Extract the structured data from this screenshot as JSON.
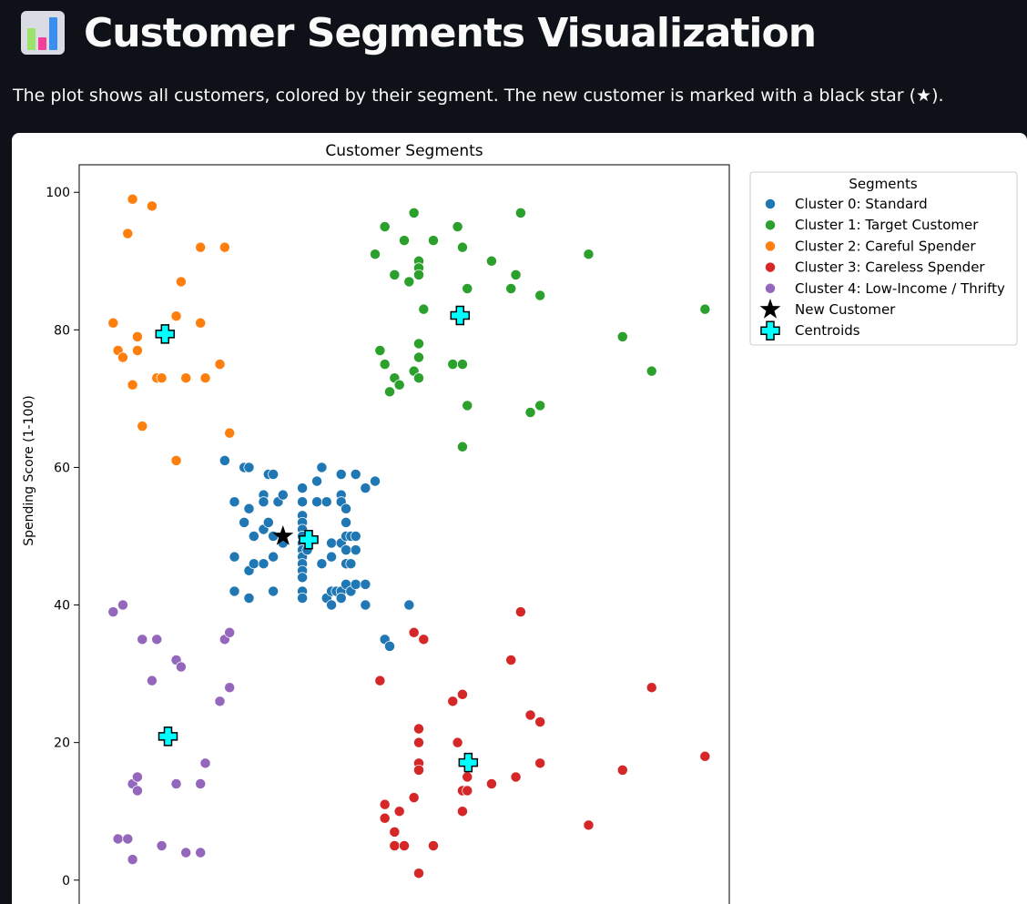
{
  "page": {
    "title": "Customer Segments Visualization",
    "description": "The plot shows all customers, colored by their segment. The new customer is marked with a black star (★)."
  },
  "colors": {
    "background": "#0e1117",
    "cluster_0": "#1f77b4",
    "cluster_1": "#2ca02c",
    "cluster_2": "#ff7f0e",
    "cluster_3": "#d62728",
    "cluster_4": "#9467bd",
    "new_customer": "#000000",
    "centroid": "#00ffff"
  },
  "chart_data": {
    "type": "scatter",
    "title": "Customer Segments",
    "xlabel": "",
    "ylabel": "Spending Score (1-100)",
    "xlim": [
      8,
      142
    ],
    "ylim": [
      -4,
      104
    ],
    "xticks": [
      20,
      40,
      60,
      80,
      100,
      120,
      140
    ],
    "yticks": [
      0,
      20,
      40,
      60,
      80,
      100
    ],
    "grid": false,
    "legend_title": "Segments",
    "legend_position": "outside-right-top",
    "series": [
      {
        "name": "Cluster 0: Standard",
        "color": "#1f77b4",
        "marker": "circle",
        "points": [
          [
            38,
            61
          ],
          [
            40,
            55
          ],
          [
            40,
            47
          ],
          [
            40,
            42
          ],
          [
            42,
            60
          ],
          [
            42,
            52
          ],
          [
            43,
            60
          ],
          [
            43,
            54
          ],
          [
            43,
            45
          ],
          [
            43,
            41
          ],
          [
            44,
            50
          ],
          [
            44,
            46
          ],
          [
            46,
            56
          ],
          [
            46,
            55
          ],
          [
            46,
            51
          ],
          [
            46,
            46
          ],
          [
            47,
            59
          ],
          [
            47,
            52
          ],
          [
            48,
            59
          ],
          [
            48,
            50
          ],
          [
            48,
            47
          ],
          [
            48,
            42
          ],
          [
            49,
            55
          ],
          [
            50,
            56
          ],
          [
            50,
            49
          ],
          [
            54,
            57
          ],
          [
            54,
            55
          ],
          [
            54,
            53
          ],
          [
            54,
            52
          ],
          [
            54,
            51
          ],
          [
            54,
            50
          ],
          [
            54,
            49
          ],
          [
            54,
            48
          ],
          [
            54,
            47
          ],
          [
            54,
            46
          ],
          [
            54,
            45
          ],
          [
            54,
            44
          ],
          [
            54,
            42
          ],
          [
            54,
            41
          ],
          [
            55,
            48
          ],
          [
            57,
            58
          ],
          [
            57,
            55
          ],
          [
            58,
            60
          ],
          [
            58,
            46
          ],
          [
            59,
            55
          ],
          [
            59,
            41
          ],
          [
            60,
            49
          ],
          [
            60,
            47
          ],
          [
            60,
            42
          ],
          [
            60,
            40
          ],
          [
            61,
            42
          ],
          [
            62,
            59
          ],
          [
            62,
            56
          ],
          [
            62,
            55
          ],
          [
            62,
            49
          ],
          [
            62,
            42
          ],
          [
            62,
            41
          ],
          [
            63,
            54
          ],
          [
            63,
            52
          ],
          [
            63,
            50
          ],
          [
            63,
            48
          ],
          [
            63,
            46
          ],
          [
            63,
            43
          ],
          [
            64,
            50
          ],
          [
            64,
            46
          ],
          [
            64,
            42
          ],
          [
            65,
            59
          ],
          [
            65,
            50
          ],
          [
            65,
            48
          ],
          [
            65,
            43
          ],
          [
            67,
            57
          ],
          [
            67,
            43
          ],
          [
            67,
            40
          ],
          [
            69,
            58
          ],
          [
            71,
            35
          ],
          [
            72,
            34
          ],
          [
            76,
            40
          ]
        ]
      },
      {
        "name": "Cluster 1: Target Customer",
        "color": "#2ca02c",
        "marker": "circle",
        "points": [
          [
            69,
            91
          ],
          [
            70,
            77
          ],
          [
            71,
            95
          ],
          [
            71,
            75
          ],
          [
            72,
            71
          ],
          [
            73,
            88
          ],
          [
            73,
            73
          ],
          [
            74,
            72
          ],
          [
            75,
            93
          ],
          [
            76,
            87
          ],
          [
            77,
            97
          ],
          [
            77,
            74
          ],
          [
            78,
            90
          ],
          [
            78,
            89
          ],
          [
            78,
            88
          ],
          [
            78,
            78
          ],
          [
            78,
            76
          ],
          [
            78,
            73
          ],
          [
            79,
            83
          ],
          [
            81,
            93
          ],
          [
            85,
            75
          ],
          [
            86,
            95
          ],
          [
            87,
            92
          ],
          [
            87,
            75
          ],
          [
            87,
            63
          ],
          [
            88,
            86
          ],
          [
            88,
            69
          ],
          [
            93,
            90
          ],
          [
            97,
            86
          ],
          [
            98,
            88
          ],
          [
            99,
            97
          ],
          [
            101,
            68
          ],
          [
            103,
            85
          ],
          [
            103,
            69
          ],
          [
            113,
            91
          ],
          [
            120,
            79
          ],
          [
            126,
            74
          ],
          [
            137,
            83
          ]
        ]
      },
      {
        "name": "Cluster 2: Careful Spender",
        "color": "#ff7f0e",
        "marker": "circle",
        "points": [
          [
            15,
            81
          ],
          [
            16,
            77
          ],
          [
            17,
            76
          ],
          [
            18,
            94
          ],
          [
            19,
            99
          ],
          [
            19,
            72
          ],
          [
            20,
            79
          ],
          [
            20,
            77
          ],
          [
            21,
            66
          ],
          [
            23,
            98
          ],
          [
            24,
            73
          ],
          [
            25,
            73
          ],
          [
            28,
            82
          ],
          [
            28,
            61
          ],
          [
            29,
            87
          ],
          [
            30,
            73
          ],
          [
            33,
            92
          ],
          [
            33,
            81
          ],
          [
            34,
            73
          ],
          [
            37,
            75
          ],
          [
            38,
            92
          ],
          [
            39,
            65
          ]
        ]
      },
      {
        "name": "Cluster 3: Careless Spender",
        "color": "#d62728",
        "marker": "circle",
        "points": [
          [
            70,
            29
          ],
          [
            71,
            11
          ],
          [
            71,
            9
          ],
          [
            73,
            7
          ],
          [
            73,
            5
          ],
          [
            74,
            10
          ],
          [
            75,
            5
          ],
          [
            77,
            36
          ],
          [
            77,
            12
          ],
          [
            78,
            22
          ],
          [
            78,
            20
          ],
          [
            78,
            17
          ],
          [
            78,
            16
          ],
          [
            78,
            1
          ],
          [
            79,
            35
          ],
          [
            81,
            5
          ],
          [
            85,
            26
          ],
          [
            86,
            20
          ],
          [
            87,
            27
          ],
          [
            87,
            13
          ],
          [
            87,
            10
          ],
          [
            88,
            15
          ],
          [
            88,
            13
          ],
          [
            93,
            14
          ],
          [
            97,
            32
          ],
          [
            98,
            15
          ],
          [
            99,
            39
          ],
          [
            101,
            24
          ],
          [
            103,
            23
          ],
          [
            103,
            17
          ],
          [
            113,
            8
          ],
          [
            120,
            16
          ],
          [
            126,
            28
          ],
          [
            137,
            18
          ]
        ]
      },
      {
        "name": "Cluster 4: Low-Income / Thrifty",
        "color": "#9467bd",
        "marker": "circle",
        "points": [
          [
            15,
            39
          ],
          [
            16,
            6
          ],
          [
            17,
            40
          ],
          [
            18,
            6
          ],
          [
            19,
            14
          ],
          [
            19,
            3
          ],
          [
            20,
            15
          ],
          [
            20,
            13
          ],
          [
            21,
            35
          ],
          [
            23,
            29
          ],
          [
            24,
            35
          ],
          [
            25,
            5
          ],
          [
            28,
            32
          ],
          [
            28,
            14
          ],
          [
            29,
            31
          ],
          [
            30,
            4
          ],
          [
            33,
            14
          ],
          [
            33,
            4
          ],
          [
            34,
            17
          ],
          [
            37,
            26
          ],
          [
            38,
            35
          ],
          [
            39,
            36
          ],
          [
            39,
            28
          ]
        ]
      },
      {
        "name": "New Customer",
        "color": "#000000",
        "marker": "star",
        "points": [
          [
            50,
            50
          ]
        ]
      },
      {
        "name": "Centroids",
        "color": "#00ffff",
        "marker": "plus",
        "points": [
          [
            25.7,
            79.4
          ],
          [
            86.5,
            82.1
          ],
          [
            55.3,
            49.5
          ],
          [
            26.3,
            20.9
          ],
          [
            88.2,
            17.1
          ]
        ]
      }
    ]
  }
}
